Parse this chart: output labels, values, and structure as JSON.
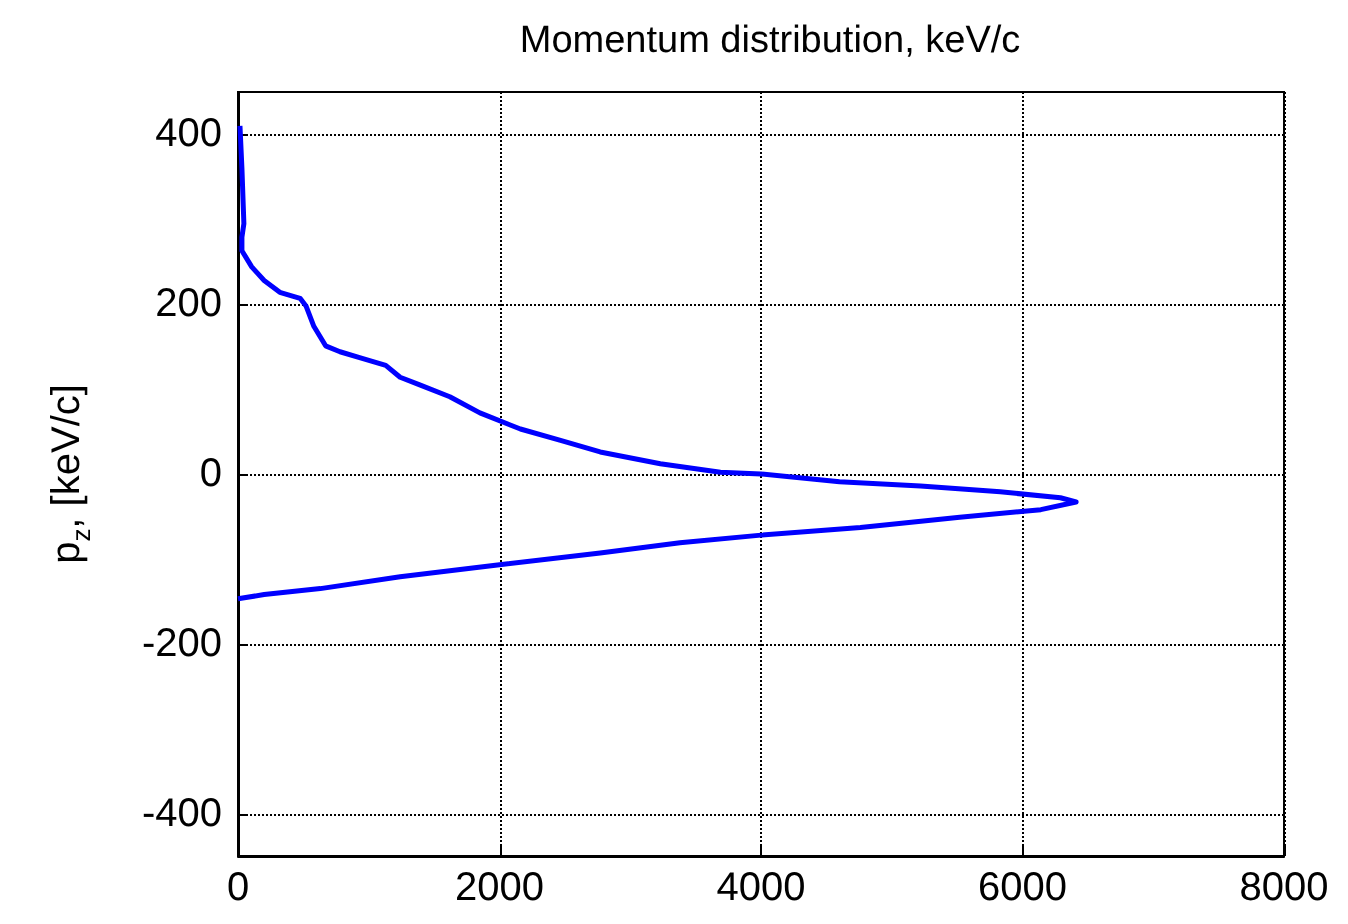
{
  "chart_data": {
    "type": "line",
    "title": "Momentum distribution, keV/c",
    "ylabel": "p$_{z}$, [keV/c]",
    "x": [
      15,
      30,
      45,
      30,
      30,
      105,
      200,
      320,
      475,
      520,
      580,
      670,
      780,
      930,
      1130,
      1240,
      1390,
      1620,
      1850,
      2160,
      2460,
      2770,
      3230,
      3690,
      4000,
      4600,
      5220,
      5830,
      6290,
      6410,
      6140,
      5520,
      4760,
      4000,
      3380,
      2770,
      2000,
      1240,
      630,
      200,
      0
    ],
    "series": [
      {
        "color": "#0000ff",
        "values": [
          410,
          360,
          295,
          279,
          263,
          244,
          228,
          214,
          207,
          198,
          174,
          151,
          144,
          137,
          128,
          114,
          105,
          91,
          72,
          53,
          40,
          26,
          12,
          2,
          0,
          -9,
          -14,
          -21,
          -28,
          -33,
          -42,
          -51,
          -63,
          -72,
          -81,
          -93,
          -107,
          -121,
          -135,
          -142,
          -147
        ]
      }
    ],
    "xlim": [
      0,
      8000
    ],
    "xticks": [
      0,
      2000,
      4000,
      6000,
      8000
    ],
    "ylim": [
      -450,
      450
    ],
    "yticks": [
      -400,
      -200,
      0,
      200,
      400
    ],
    "grid": true,
    "marker": "none",
    "line_style": "solid"
  }
}
